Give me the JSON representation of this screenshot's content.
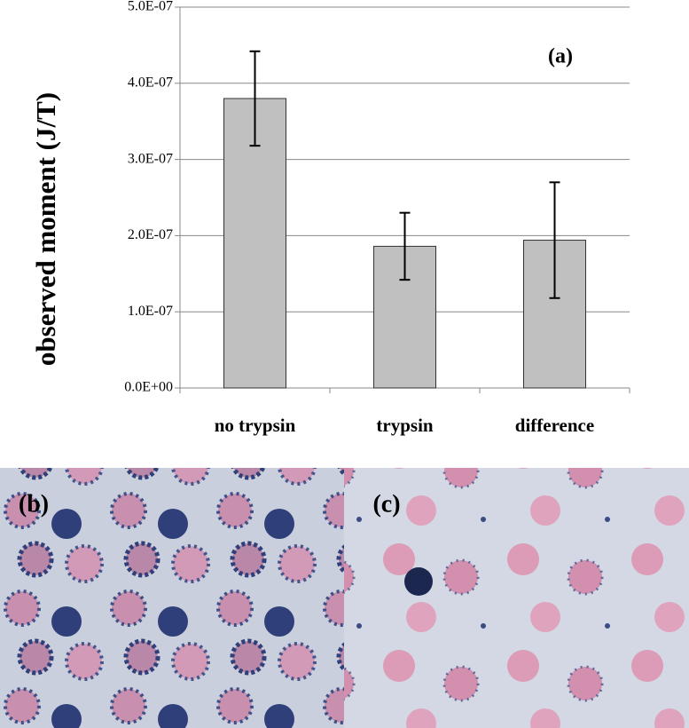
{
  "chart_data": {
    "type": "bar",
    "ylabel": "observed moment (J/T)",
    "annotation": "(a)",
    "categories": [
      "no trypsin",
      "trypsin",
      "difference"
    ],
    "values": [
      3.8e-07,
      1.86e-07,
      1.94e-07
    ],
    "errors": [
      6.2e-08,
      4.4e-08,
      7.6e-08
    ],
    "color": "#c0c0c0",
    "ylim": [
      0,
      5e-07
    ],
    "yticks": [
      {
        "value": 0,
        "label": "0.0E+00"
      },
      {
        "value": 1e-07,
        "label": "1.0E-07"
      },
      {
        "value": 2e-07,
        "label": "2.0E-07"
      },
      {
        "value": 3e-07,
        "label": "3.0E-07"
      },
      {
        "value": 4e-07,
        "label": "4.0E-07"
      },
      {
        "value": 5e-07,
        "label": "5.0E-07"
      }
    ],
    "grid": true
  },
  "panels": [
    {
      "label": "(b)"
    },
    {
      "label": "(c)"
    }
  ]
}
